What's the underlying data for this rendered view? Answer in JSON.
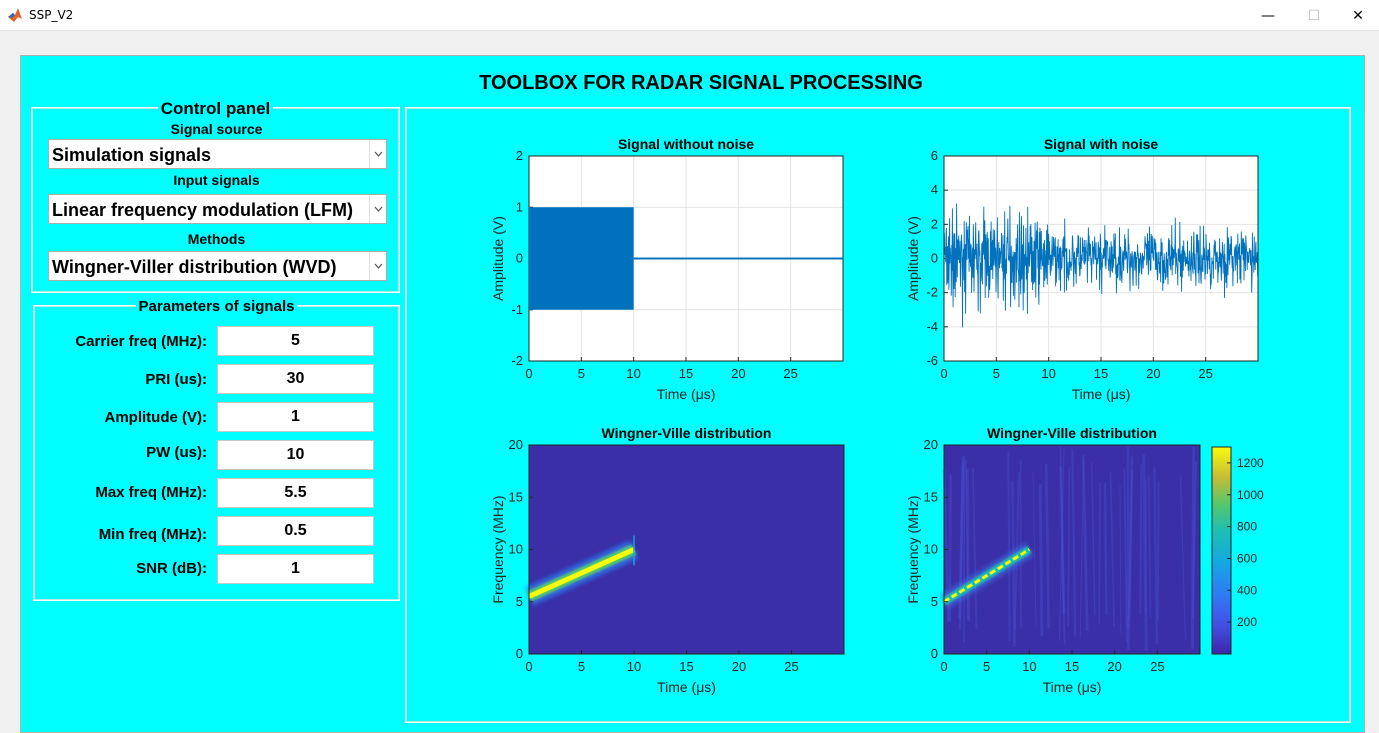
{
  "window": {
    "title": "SSP_V2",
    "minimize": "—",
    "maximize": "☐",
    "close": "✕"
  },
  "app": {
    "title": "TOOLBOX FOR RADAR SIGNAL PROCESSING"
  },
  "control_panel": {
    "title": "Control panel",
    "signal_source_label": "Signal source",
    "signal_source_value": "Simulation signals",
    "input_signals_label": "Input signals",
    "input_signals_value": "Linear frequency modulation (LFM)",
    "methods_label": "Methods",
    "methods_value": "Wingner-Viller distribution (WVD)"
  },
  "parameters": {
    "title": "Parameters of signals",
    "items": [
      {
        "label": "Carrier freq (MHz):",
        "value": "5"
      },
      {
        "label": "PRI (us):",
        "value": "30"
      },
      {
        "label": "Amplitude (V):",
        "value": "1"
      },
      {
        "label": "PW (us):",
        "value": "10"
      },
      {
        "label": "Max freq (MHz):",
        "value": "5.5"
      },
      {
        "label": "Min freq (MHz):",
        "value": "0.5"
      },
      {
        "label": "SNR (dB):",
        "value": "1"
      }
    ]
  },
  "chart_data": [
    {
      "type": "line",
      "title": "Signal without noise",
      "xlabel": "Time (μs)",
      "ylabel": "Amplitude (V)",
      "xlim": [
        0,
        30
      ],
      "ylim": [
        -2,
        2
      ],
      "xticks": [
        0,
        5,
        10,
        15,
        20,
        25
      ],
      "yticks": [
        -2,
        -1,
        0,
        1,
        2
      ],
      "grid": true,
      "color": "#0072bd",
      "series": [
        {
          "x": [
            0,
            10,
            10,
            30
          ],
          "envelope_max": [
            1,
            1,
            0,
            0
          ],
          "envelope_min": [
            -1,
            -1,
            0,
            0
          ]
        }
      ]
    },
    {
      "type": "line",
      "title": "Signal with noise",
      "xlabel": "Time (μs)",
      "ylabel": "Amplitude (V)",
      "xlim": [
        0,
        30
      ],
      "ylim": [
        -6,
        6
      ],
      "xticks": [
        0,
        5,
        10,
        15,
        20,
        25
      ],
      "yticks": [
        -6,
        -4,
        -2,
        0,
        2,
        4,
        6
      ],
      "grid": true,
      "color": "#0072bd",
      "series": [
        {
          "x": [
            0,
            10,
            10,
            30
          ],
          "envelope_max": [
            4.5,
            4.5,
            3,
            3
          ],
          "envelope_min": [
            -4.5,
            -4.5,
            -3,
            -3
          ]
        }
      ]
    },
    {
      "type": "heatmap",
      "title": "Wingner-Ville distribution",
      "xlabel": "Time (μs)",
      "ylabel": "Frequency (MHz)",
      "xlim": [
        0,
        30
      ],
      "ylim": [
        0,
        20
      ],
      "xticks": [
        0,
        5,
        10,
        15,
        20,
        25
      ],
      "yticks": [
        0,
        5,
        10,
        15,
        20
      ],
      "ridge": {
        "t": [
          0,
          10
        ],
        "f": [
          5.5,
          10
        ]
      }
    },
    {
      "type": "heatmap",
      "title": "Wingner-Ville distribution",
      "xlabel": "Time (μs)",
      "ylabel": "Frequency (MHz)",
      "xlim": [
        0,
        30
      ],
      "ylim": [
        0,
        20
      ],
      "xticks": [
        0,
        5,
        10,
        15,
        20,
        25
      ],
      "yticks": [
        0,
        5,
        10,
        15,
        20
      ],
      "ridge": {
        "t": [
          0,
          10
        ],
        "f": [
          5,
          10
        ]
      },
      "colorbar": {
        "ticks": [
          200,
          400,
          600,
          800,
          1000,
          1200
        ],
        "range": [
          0,
          1300
        ]
      }
    }
  ]
}
